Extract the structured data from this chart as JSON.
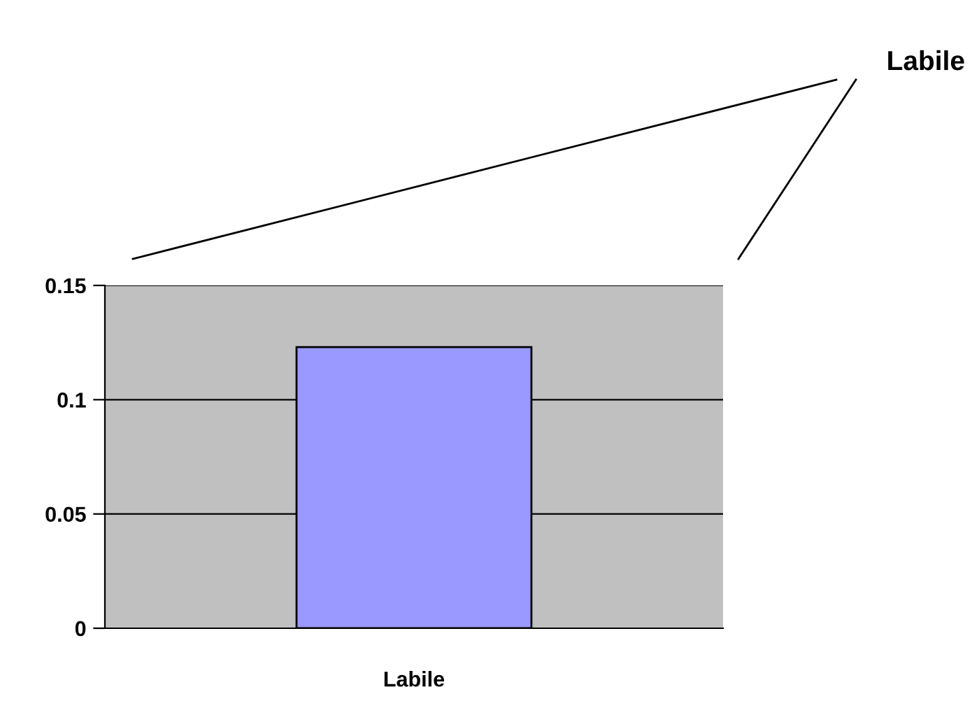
{
  "chart_data": {
    "type": "bar",
    "categories": [
      "Labile"
    ],
    "values": [
      0.123
    ],
    "color": "#9999ff",
    "ylim": [
      0,
      0.15
    ],
    "yticks": [
      0,
      0.05,
      0.1,
      0.15
    ],
    "grid": "y",
    "annotations": [
      "Labile"
    ]
  }
}
